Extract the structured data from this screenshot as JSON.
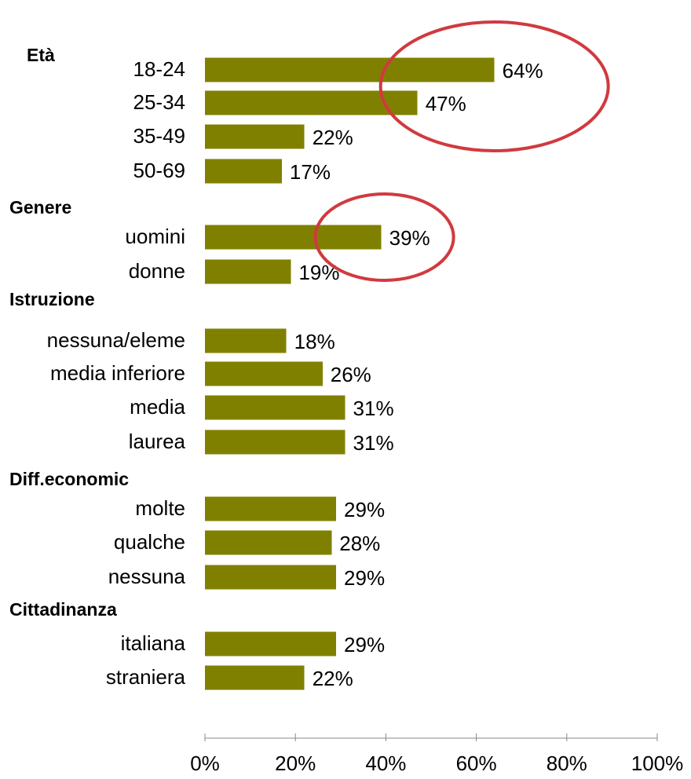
{
  "colors": {
    "bar": "#808000",
    "highlight": "#d03a3f"
  },
  "chart_data": {
    "type": "bar",
    "orientation": "horizontal",
    "xlim": [
      0,
      100
    ],
    "x_ticks": [
      "0%",
      "20%",
      "40%",
      "60%",
      "80%",
      "100%"
    ],
    "grid": false,
    "groups": [
      {
        "name": "Età",
        "categories": [
          "18-24",
          "25-34",
          "35-49",
          "50-69"
        ],
        "values": [
          64,
          47,
          22,
          17
        ],
        "labels": [
          "64%",
          "47%",
          "22%",
          "17%"
        ]
      },
      {
        "name": "Genere",
        "categories": [
          "uomini",
          "donne"
        ],
        "values": [
          39,
          19
        ],
        "labels": [
          "39%",
          "19%"
        ]
      },
      {
        "name": "Istruzione",
        "categories": [
          "nessuna/eleme",
          "media inferiore",
          "media",
          "laurea"
        ],
        "values": [
          18,
          26,
          31,
          31
        ],
        "labels": [
          "18%",
          "26%",
          "31%",
          "31%"
        ]
      },
      {
        "name": "Diff.economic",
        "categories": [
          "molte",
          "qualche",
          "nessuna"
        ],
        "values": [
          29,
          28,
          29
        ],
        "labels": [
          "29%",
          "28%",
          "29%"
        ]
      },
      {
        "name": "Cittadinanza",
        "categories": [
          "italiana",
          "straniera"
        ],
        "values": [
          29,
          22
        ],
        "labels": [
          "29%",
          "22%"
        ]
      }
    ],
    "highlights": [
      {
        "group": "Età",
        "categories": [
          "18-24",
          "25-34"
        ],
        "shape": "ellipse"
      },
      {
        "group": "Genere",
        "categories": [
          "uomini"
        ],
        "shape": "ellipse"
      }
    ]
  }
}
